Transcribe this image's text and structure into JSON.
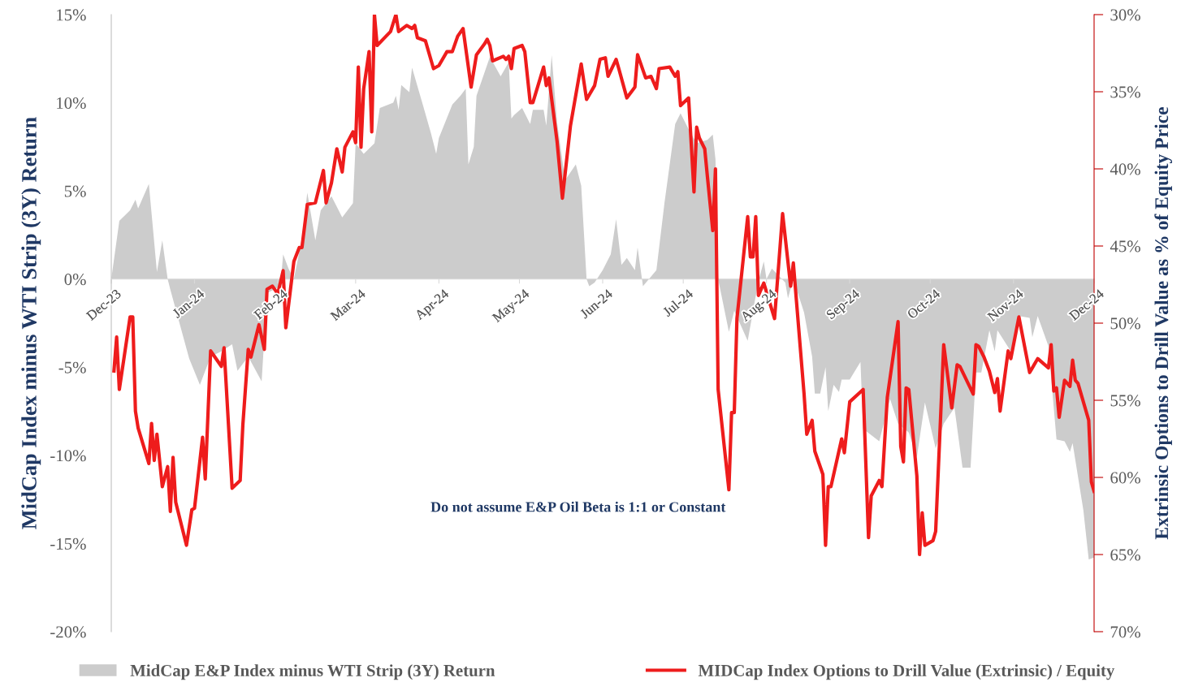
{
  "chart_data": {
    "type": "line",
    "ylabel": "MidCap Index minus WTI Strip (3Y) Return",
    "y2label": "Extrinsic Options to Drill Value as % of Equity Price",
    "annotations": [
      "Do not assume E&P Oil Beta is 1:1 or Constant"
    ],
    "xlim": [
      "2023-12-01",
      "2024-12-01"
    ],
    "xticks": [
      {
        "value": "2023-12-01",
        "label": "Dec-23"
      },
      {
        "value": "2024-01-01",
        "label": "Jan-24"
      },
      {
        "value": "2024-02-01",
        "label": "Feb-24"
      },
      {
        "value": "2024-03-01",
        "label": "Mar-24"
      },
      {
        "value": "2024-04-01",
        "label": "Apr-24"
      },
      {
        "value": "2024-05-01",
        "label": "May-24"
      },
      {
        "value": "2024-06-01",
        "label": "Jun-24"
      },
      {
        "value": "2024-07-01",
        "label": "Jul-24"
      },
      {
        "value": "2024-08-01",
        "label": "Aug-24"
      },
      {
        "value": "2024-09-01",
        "label": "Sep-24"
      },
      {
        "value": "2024-10-01",
        "label": "Oct-24"
      },
      {
        "value": "2024-11-01",
        "label": "Nov-24"
      },
      {
        "value": "2024-12-01",
        "label": "Dec-24"
      }
    ],
    "ylim": [
      -20,
      15
    ],
    "yticks": [
      {
        "value": 15,
        "label": "15%"
      },
      {
        "value": 10,
        "label": "10%"
      },
      {
        "value": 5,
        "label": "5%"
      },
      {
        "value": 0,
        "label": "0%"
      },
      {
        "value": -5,
        "label": "-5%"
      },
      {
        "value": -10,
        "label": "-10%"
      },
      {
        "value": -15,
        "label": "-15%"
      },
      {
        "value": -20,
        "label": "-20%"
      }
    ],
    "y2lim": [
      70,
      30
    ],
    "y2ticks": [
      {
        "value": 30,
        "label": "30%"
      },
      {
        "value": 35,
        "label": "35%"
      },
      {
        "value": 40,
        "label": "40%"
      },
      {
        "value": 45,
        "label": "45%"
      },
      {
        "value": 50,
        "label": "50%"
      },
      {
        "value": 55,
        "label": "55%"
      },
      {
        "value": 60,
        "label": "60%"
      },
      {
        "value": 65,
        "label": "65%"
      },
      {
        "value": 70,
        "label": "70%"
      }
    ],
    "legend": "bottom",
    "grid": false,
    "series": [
      {
        "name": "MidCap E&P Index minus WTI Strip (3Y) Return",
        "type": "area",
        "color": "#cccccc",
        "x": [
          "2023-12-01",
          "2023-12-04",
          "2023-12-08",
          "2023-12-10",
          "2023-12-11",
          "2023-12-15",
          "2023-12-18",
          "2023-12-20",
          "2023-12-22",
          "2023-12-23",
          "2023-12-30",
          "2024-01-03",
          "2024-01-07",
          "2024-01-11",
          "2024-01-15",
          "2024-01-17",
          "2024-01-21",
          "2024-01-26",
          "2024-01-28",
          "2024-02-02",
          "2024-02-03",
          "2024-02-05",
          "2024-02-07",
          "2024-02-10",
          "2024-02-12",
          "2024-02-15",
          "2024-02-17",
          "2024-02-21",
          "2024-02-25",
          "2024-02-29",
          "2024-03-01",
          "2024-03-04",
          "2024-03-08",
          "2024-03-10",
          "2024-03-15",
          "2024-03-16",
          "2024-03-17",
          "2024-03-18",
          "2024-03-21",
          "2024-03-22",
          "2024-03-26",
          "2024-03-29",
          "2024-03-31",
          "2024-04-01",
          "2024-04-06",
          "2024-04-09",
          "2024-04-11",
          "2024-04-12",
          "2024-04-14",
          "2024-04-15",
          "2024-04-20",
          "2024-04-24",
          "2024-04-27",
          "2024-04-28",
          "2024-04-29",
          "2024-05-02",
          "2024-05-05",
          "2024-05-06",
          "2024-05-10",
          "2024-05-11",
          "2024-05-13",
          "2024-05-15",
          "2024-05-18",
          "2024-05-22",
          "2024-05-24",
          "2024-05-26",
          "2024-05-27",
          "2024-05-29",
          "2024-06-01",
          "2024-06-04",
          "2024-06-06",
          "2024-06-08",
          "2024-06-10",
          "2024-06-13",
          "2024-06-14",
          "2024-06-16",
          "2024-06-21",
          "2024-06-24",
          "2024-06-28",
          "2024-06-30",
          "2024-07-03",
          "2024-07-06",
          "2024-07-10",
          "2024-07-12",
          "2024-07-13",
          "2024-07-14",
          "2024-07-18",
          "2024-07-20",
          "2024-07-25",
          "2024-07-29",
          "2024-07-31",
          "2024-08-01",
          "2024-08-03",
          "2024-08-08",
          "2024-08-09",
          "2024-08-11",
          "2024-08-15",
          "2024-08-18",
          "2024-08-19",
          "2024-08-21",
          "2024-08-23",
          "2024-08-24",
          "2024-08-26",
          "2024-08-28",
          "2024-08-29",
          "2024-09-01",
          "2024-09-05",
          "2024-09-06",
          "2024-09-12",
          "2024-09-16",
          "2024-09-19",
          "2024-09-23",
          "2024-09-26",
          "2024-09-29",
          "2024-10-03",
          "2024-10-06",
          "2024-10-10",
          "2024-10-13",
          "2024-10-16",
          "2024-10-18",
          "2024-10-20",
          "2024-10-23",
          "2024-10-25",
          "2024-10-26",
          "2024-10-31",
          "2024-11-03",
          "2024-11-07",
          "2024-11-08",
          "2024-11-10",
          "2024-11-14",
          "2024-11-17",
          "2024-11-20",
          "2024-11-22",
          "2024-11-23",
          "2024-11-25",
          "2024-11-27",
          "2024-11-29",
          "2024-12-01"
        ],
        "values": [
          0,
          3.3,
          3.9,
          4.5,
          4.0,
          5.4,
          0.4,
          2.2,
          0,
          -0.6,
          -4.5,
          -6.0,
          -4.4,
          -4.1,
          -3.7,
          -5.2,
          -4.4,
          -5.8,
          -0.8,
          -0.4,
          1.4,
          0.6,
          0,
          2.3,
          4.9,
          2.2,
          3.9,
          4.7,
          3.5,
          4.3,
          7.7,
          7.1,
          7.7,
          9.7,
          10.0,
          10.4,
          9.6,
          11.0,
          10.6,
          12.0,
          9.9,
          8.3,
          7.1,
          8.0,
          9.9,
          10.4,
          10.8,
          6.5,
          7.5,
          10.4,
          12.6,
          11.5,
          12.3,
          9.1,
          9.3,
          9.7,
          8.8,
          9.6,
          9.6,
          8.7,
          12.7,
          8.9,
          5.6,
          6.5,
          5.3,
          0,
          -0.4,
          -0.2,
          0.5,
          1.4,
          3.4,
          0.8,
          1.2,
          0.5,
          1.8,
          -0.4,
          0.5,
          4.3,
          8.8,
          9.4,
          8.5,
          7.7,
          7.9,
          8.2,
          6.8,
          0,
          -3.0,
          -1.8,
          -3.5,
          -0.1,
          1.0,
          0,
          0.6,
          -0.2,
          -1.1,
          0,
          -1.9,
          -4.4,
          -6.5,
          -6.5,
          -5.0,
          -7.5,
          -6.0,
          -6.4,
          -5.7,
          -5.7,
          -4.7,
          -8.5,
          -9.2,
          -6.8,
          -8.2,
          -8.7,
          -10.1,
          -7.0,
          -9.6,
          -8.2,
          -7.3,
          -10.7,
          -10.7,
          -5.3,
          -5.3,
          -2.9,
          -4.1,
          -2.9,
          -4.1,
          -2.1,
          -2.2,
          -3.3,
          -2.1,
          -3.8,
          -9.1,
          -9.2,
          -9.8,
          -9.3,
          -11.2,
          -13.1,
          -15.9,
          -15.8
        ]
      },
      {
        "name": "MIDCap Index Options to Drill Value (Extrinsic) / Equity",
        "type": "line",
        "axis": "y2",
        "color": "#ee1c1c",
        "x": [
          "2023-12-02",
          "2023-12-03",
          "2023-12-04",
          "2023-12-08",
          "2023-12-09",
          "2023-12-10",
          "2023-12-11",
          "2023-12-15",
          "2023-12-16",
          "2023-12-17",
          "2023-12-18",
          "2023-12-20",
          "2023-12-22",
          "2023-12-23",
          "2023-12-24",
          "2023-12-25",
          "2023-12-29",
          "2023-12-31",
          "2024-01-01",
          "2024-01-04",
          "2024-01-05",
          "2024-01-07",
          "2024-01-11",
          "2024-01-12",
          "2024-01-15",
          "2024-01-18",
          "2024-01-19",
          "2024-01-21",
          "2024-01-22",
          "2024-01-25",
          "2024-01-27",
          "2024-01-28",
          "2024-01-30",
          "2024-02-01",
          "2024-02-03",
          "2024-02-04",
          "2024-02-07",
          "2024-02-09",
          "2024-02-10",
          "2024-02-12",
          "2024-02-15",
          "2024-02-18",
          "2024-02-19",
          "2024-02-21",
          "2024-02-23",
          "2024-02-25",
          "2024-02-26",
          "2024-02-29",
          "2024-03-01",
          "2024-03-02",
          "2024-03-03",
          "2024-03-04",
          "2024-03-06",
          "2024-03-07",
          "2024-03-08",
          "2024-03-09",
          "2024-03-14",
          "2024-03-16",
          "2024-03-17",
          "2024-03-20",
          "2024-03-22",
          "2024-03-23",
          "2024-03-24",
          "2024-03-27",
          "2024-03-30",
          "2024-04-01",
          "2024-04-04",
          "2024-04-06",
          "2024-04-08",
          "2024-04-10",
          "2024-04-13",
          "2024-04-15",
          "2024-04-18",
          "2024-04-19",
          "2024-04-20",
          "2024-04-21",
          "2024-04-25",
          "2024-04-26",
          "2024-04-27",
          "2024-04-28",
          "2024-04-29",
          "2024-05-02",
          "2024-05-03",
          "2024-05-05",
          "2024-05-06",
          "2024-05-10",
          "2024-05-11",
          "2024-05-12",
          "2024-05-15",
          "2024-05-17",
          "2024-05-20",
          "2024-05-24",
          "2024-05-26",
          "2024-05-29",
          "2024-05-31",
          "2024-06-02",
          "2024-06-03",
          "2024-06-06",
          "2024-06-07",
          "2024-06-10",
          "2024-06-13",
          "2024-06-14",
          "2024-06-17",
          "2024-06-19",
          "2024-06-21",
          "2024-06-22",
          "2024-06-26",
          "2024-06-28",
          "2024-06-29",
          "2024-06-30",
          "2024-07-03",
          "2024-07-05",
          "2024-07-06",
          "2024-07-07",
          "2024-07-09",
          "2024-07-10",
          "2024-07-12",
          "2024-07-13",
          "2024-07-14",
          "2024-07-18",
          "2024-07-19",
          "2024-07-20",
          "2024-07-21",
          "2024-07-25",
          "2024-07-26",
          "2024-07-27",
          "2024-07-28",
          "2024-07-29",
          "2024-07-31",
          "2024-08-04",
          "2024-08-07",
          "2024-08-10",
          "2024-08-11",
          "2024-08-15",
          "2024-08-16",
          "2024-08-18",
          "2024-08-19",
          "2024-08-22",
          "2024-08-23",
          "2024-08-24",
          "2024-08-25",
          "2024-08-29",
          "2024-08-30",
          "2024-09-01",
          "2024-09-06",
          "2024-09-08",
          "2024-09-09",
          "2024-09-12",
          "2024-09-13",
          "2024-09-15",
          "2024-09-19",
          "2024-09-20",
          "2024-09-21",
          "2024-09-22",
          "2024-09-23",
          "2024-09-26",
          "2024-09-27",
          "2024-09-28",
          "2024-09-29",
          "2024-10-02",
          "2024-10-03",
          "2024-10-06",
          "2024-10-09",
          "2024-10-11",
          "2024-10-12",
          "2024-10-17",
          "2024-10-18",
          "2024-10-19",
          "2024-10-21",
          "2024-10-23",
          "2024-10-25",
          "2024-10-26",
          "2024-10-27",
          "2024-10-30",
          "2024-10-31",
          "2024-11-03",
          "2024-11-07",
          "2024-11-10",
          "2024-11-14",
          "2024-11-15",
          "2024-11-16",
          "2024-11-17",
          "2024-11-18",
          "2024-11-20",
          "2024-11-22",
          "2024-11-23",
          "2024-11-24",
          "2024-11-25",
          "2024-11-29",
          "2024-11-30",
          "2024-12-01"
        ],
        "values": [
          53.1,
          50.9,
          54.3,
          49.6,
          49.6,
          55.7,
          56.8,
          59.1,
          56.5,
          58.9,
          57.2,
          60.6,
          59.3,
          62.2,
          58.7,
          61.6,
          64.4,
          62.1,
          62.0,
          57.4,
          60.1,
          51.8,
          52.8,
          51.6,
          60.7,
          60.2,
          56.6,
          51.7,
          52.2,
          50.1,
          51.7,
          47.8,
          47.6,
          48.1,
          46.6,
          50.3,
          46.0,
          45.1,
          45.1,
          42.3,
          42.2,
          40.1,
          42.2,
          40.9,
          38.7,
          40.2,
          38.6,
          37.6,
          38.3,
          33.4,
          38.6,
          34.8,
          32.4,
          37.6,
          30.0,
          32.0,
          31.1,
          30.0,
          31.1,
          30.7,
          30.9,
          30.7,
          31.5,
          31.7,
          33.5,
          33.3,
          32.4,
          32.4,
          31.4,
          30.9,
          34.7,
          32.6,
          31.9,
          31.6,
          32.0,
          33.0,
          32.7,
          32.9,
          32.7,
          33.5,
          32.2,
          32.0,
          32.4,
          35.7,
          35.7,
          33.4,
          34.6,
          34.1,
          38.2,
          41.9,
          37.2,
          33.2,
          35.5,
          34.6,
          32.9,
          32.8,
          34.0,
          32.9,
          33.5,
          35.4,
          34.7,
          32.6,
          34.1,
          34.0,
          34.8,
          33.5,
          33.4,
          34.0,
          33.7,
          35.9,
          35.4,
          41.5,
          37.3,
          38.0,
          38.7,
          40.5,
          44.0,
          40.0,
          54.3,
          60.8,
          55.8,
          55.8,
          49.7,
          43.1,
          45.7,
          45.7,
          43.1,
          48.2,
          47.4,
          49.7,
          42.9,
          47.6,
          46.1,
          54.6,
          57.2,
          56.3,
          58.3,
          59.8,
          64.4,
          60.6,
          60.6,
          57.5,
          58.4,
          55.1,
          54.3,
          63.9,
          61.2,
          60.2,
          60.6,
          54.8,
          49.9,
          58.0,
          59.0,
          54.2,
          54.3,
          59.9,
          65.0,
          62.3,
          64.4,
          64.1,
          63.5,
          51.4,
          55.5,
          52.7,
          52.8,
          54.6,
          51.4,
          51.5,
          52.2,
          53.1,
          54.5,
          53.6,
          55.7,
          51.8,
          52.3,
          49.6,
          53.2,
          52.3,
          52.9,
          51.4,
          54.4,
          54.2,
          56.1,
          53.7,
          54.1,
          52.4,
          53.7,
          53.9,
          56.3,
          60.3,
          60.9
        ]
      }
    ]
  }
}
